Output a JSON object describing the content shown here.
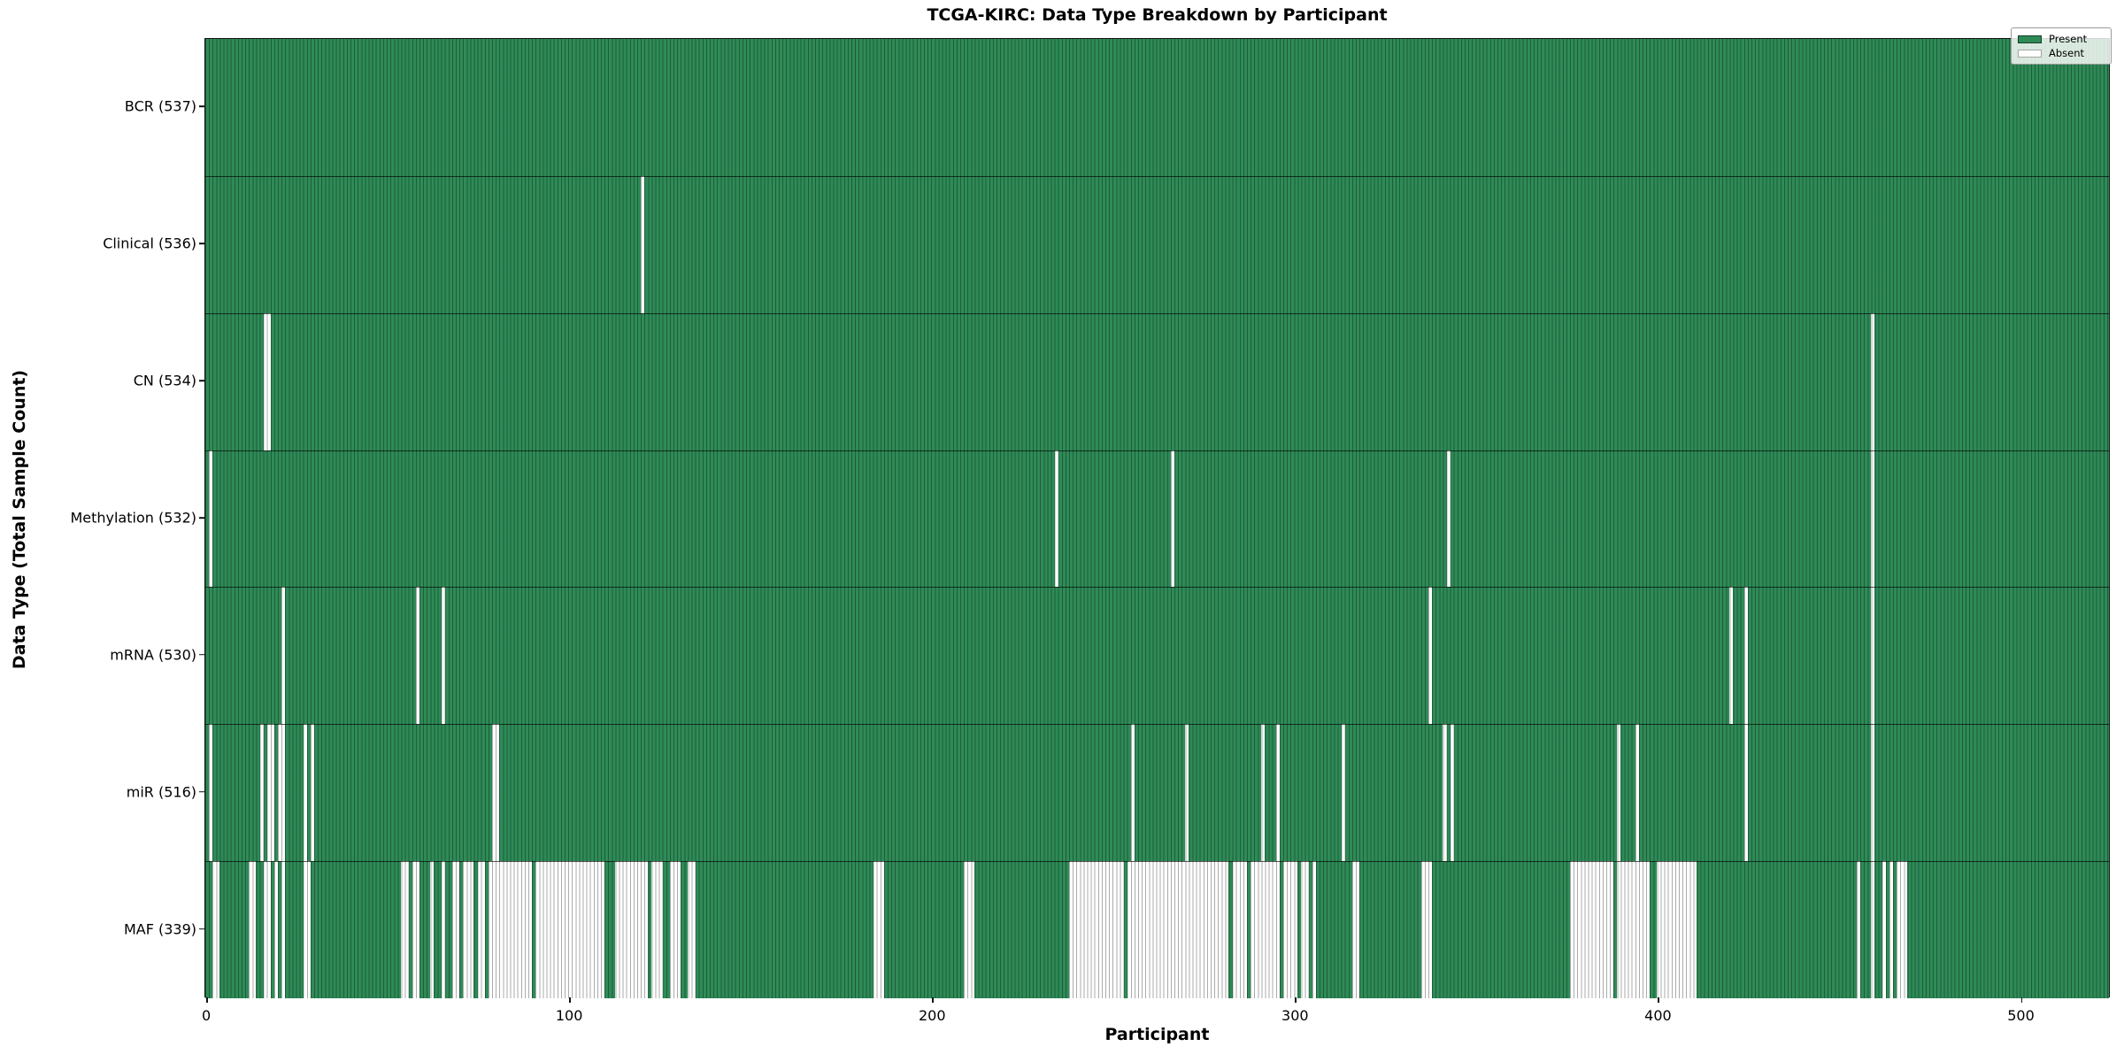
{
  "title": "TCGA-KIRC: Data Type Breakdown by Participant",
  "xlabel": "Participant",
  "ylabel": "Data Type (Total Sample Count)",
  "legend": {
    "present_label": "Present",
    "absent_label": "Absent"
  },
  "colors": {
    "present": "#2e8b57",
    "absent": "#ffffff",
    "cell_edge": "rgba(0,0,0,0.33)",
    "axis": "#111111"
  },
  "chart_data": {
    "type": "heatmap",
    "x_axis": {
      "label": "Participant",
      "ticks": [
        0,
        100,
        200,
        300,
        400,
        500
      ],
      "range": [
        0,
        525
      ]
    },
    "y_axis_label": "Data Type (Total Sample Count)",
    "legend_entries": [
      "Present",
      "Absent"
    ],
    "n_participants": 525,
    "rows": [
      {
        "label": "BCR (537)",
        "data_type": "BCR",
        "total_sample_count": 537,
        "absent_ranges": []
      },
      {
        "label": "Clinical (536)",
        "data_type": "Clinical",
        "total_sample_count": 536,
        "absent_ranges": [
          [
            120,
            121
          ]
        ]
      },
      {
        "label": "CN (534)",
        "data_type": "CN",
        "total_sample_count": 534,
        "absent_ranges": [
          [
            16,
            18
          ],
          [
            459,
            460
          ]
        ]
      },
      {
        "label": "Methylation (532)",
        "data_type": "Methylation",
        "total_sample_count": 532,
        "absent_ranges": [
          [
            1,
            2
          ],
          [
            234,
            235
          ],
          [
            266,
            267
          ],
          [
            342,
            343
          ],
          [
            459,
            460
          ]
        ]
      },
      {
        "label": "mRNA (530)",
        "data_type": "mRNA",
        "total_sample_count": 530,
        "absent_ranges": [
          [
            21,
            22
          ],
          [
            58,
            59
          ],
          [
            65,
            66
          ],
          [
            337,
            338
          ],
          [
            420,
            421
          ],
          [
            424,
            425
          ],
          [
            459,
            460
          ]
        ]
      },
      {
        "label": "miR (516)",
        "data_type": "miR",
        "total_sample_count": 516,
        "absent_ranges": [
          [
            1,
            2
          ],
          [
            15,
            16
          ],
          [
            17,
            19
          ],
          [
            20,
            22
          ],
          [
            27,
            28
          ],
          [
            29,
            30
          ],
          [
            79,
            81
          ],
          [
            255,
            256
          ],
          [
            270,
            271
          ],
          [
            291,
            292
          ],
          [
            295,
            296
          ],
          [
            313,
            314
          ],
          [
            341,
            342
          ],
          [
            343,
            344
          ],
          [
            389,
            390
          ],
          [
            394,
            395
          ],
          [
            424,
            425
          ],
          [
            459,
            460
          ]
        ]
      },
      {
        "label": "MAF (339)",
        "data_type": "MAF",
        "total_sample_count": 339,
        "absent_ranges": [
          [
            2,
            4
          ],
          [
            12,
            14
          ],
          [
            16,
            18
          ],
          [
            19,
            20
          ],
          [
            21,
            22
          ],
          [
            27,
            29
          ],
          [
            54,
            56
          ],
          [
            57,
            59
          ],
          [
            62,
            63
          ],
          [
            65,
            66
          ],
          [
            68,
            70
          ],
          [
            71,
            74
          ],
          [
            75,
            77
          ],
          [
            78,
            90
          ],
          [
            91,
            110
          ],
          [
            113,
            122
          ],
          [
            123,
            126
          ],
          [
            128,
            131
          ],
          [
            133,
            135
          ],
          [
            184,
            187
          ],
          [
            209,
            212
          ],
          [
            238,
            253
          ],
          [
            254,
            282
          ],
          [
            283,
            287
          ],
          [
            288,
            296
          ],
          [
            297,
            301
          ],
          [
            302,
            304
          ],
          [
            305,
            306
          ],
          [
            316,
            318
          ],
          [
            335,
            338
          ],
          [
            376,
            388
          ],
          [
            389,
            398
          ],
          [
            400,
            411
          ],
          [
            455,
            456
          ],
          [
            459,
            460
          ],
          [
            462,
            463
          ],
          [
            464,
            465
          ],
          [
            466,
            469
          ]
        ]
      }
    ]
  }
}
